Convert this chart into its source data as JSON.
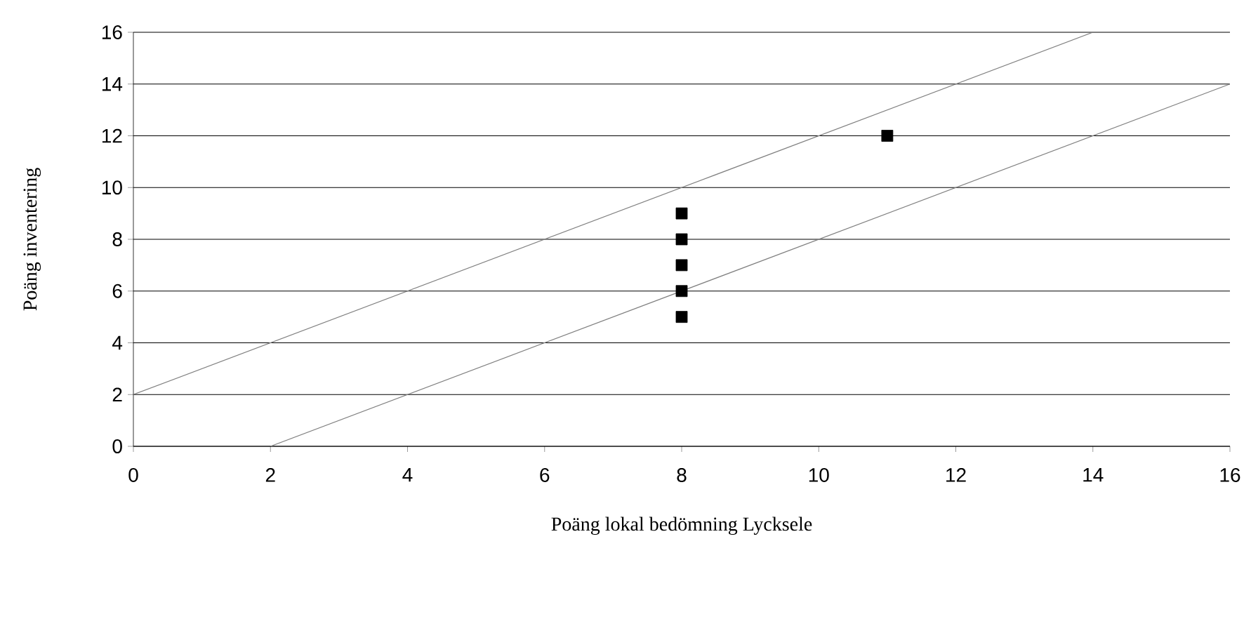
{
  "chart_data": {
    "type": "scatter",
    "xlabel": "Poäng lokal bedömning Lycksele",
    "ylabel": "Poäng inventering",
    "xlim": [
      0,
      16
    ],
    "ylim": [
      0,
      16
    ],
    "xticks": [
      0,
      2,
      4,
      6,
      8,
      10,
      12,
      14,
      16
    ],
    "yticks": [
      0,
      2,
      4,
      6,
      8,
      10,
      12,
      14,
      16
    ],
    "grid": "y",
    "marker": "square",
    "series": [
      {
        "color": "#000000",
        "x": [
          8,
          8,
          8,
          8,
          8,
          11
        ],
        "values": [
          9,
          8,
          7,
          6,
          5,
          12
        ]
      },
      {
        "type": "line",
        "color": "#808080",
        "marker": "none",
        "x": [
          0,
          14
        ],
        "values": [
          2,
          16
        ]
      },
      {
        "type": "line",
        "color": "#808080",
        "marker": "none",
        "x": [
          2,
          16
        ],
        "values": [
          0,
          14
        ]
      }
    ]
  }
}
